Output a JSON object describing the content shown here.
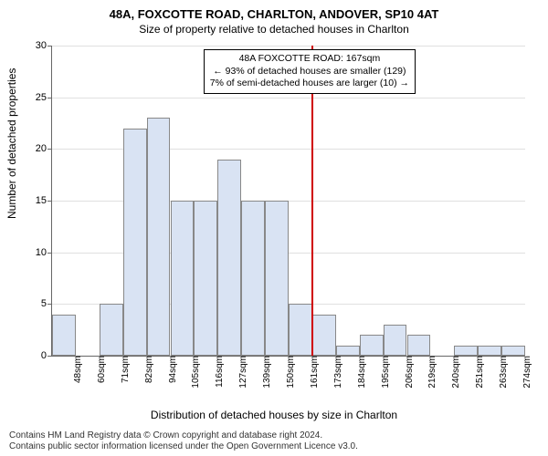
{
  "title": "48A, FOXCOTTE ROAD, CHARLTON, ANDOVER, SP10 4AT",
  "subtitle": "Size of property relative to detached houses in Charlton",
  "ylabel": "Number of detached properties",
  "xlabel": "Distribution of detached houses by size in Charlton",
  "footer_line1": "Contains HM Land Registry data © Crown copyright and database right 2024.",
  "footer_line2": "Contains public sector information licensed under the Open Government Licence v3.0.",
  "chart": {
    "type": "histogram",
    "ylim": [
      0,
      30
    ],
    "ytick_step": 5,
    "bar_fill": "#d9e3f3",
    "bar_border": "#888888",
    "grid_color": "#e0e0e0",
    "background_color": "#ffffff",
    "marker_color": "#d00000",
    "marker_x_category_index": 10,
    "categories": [
      "48sqm",
      "60sqm",
      "71sqm",
      "82sqm",
      "94sqm",
      "105sqm",
      "116sqm",
      "127sqm",
      "139sqm",
      "150sqm",
      "161sqm",
      "173sqm",
      "184sqm",
      "195sqm",
      "206sqm",
      "219sqm",
      "240sqm",
      "251sqm",
      "263sqm",
      "274sqm"
    ],
    "values": [
      4,
      0,
      5,
      22,
      23,
      15,
      15,
      19,
      15,
      15,
      5,
      4,
      1,
      2,
      3,
      2,
      0,
      1,
      1,
      1
    ]
  },
  "annotation": {
    "line1": "48A FOXCOTTE ROAD: 167sqm",
    "line2": "← 93% of detached houses are smaller (129)",
    "line3": "7% of semi-detached houses are larger (10) →"
  }
}
